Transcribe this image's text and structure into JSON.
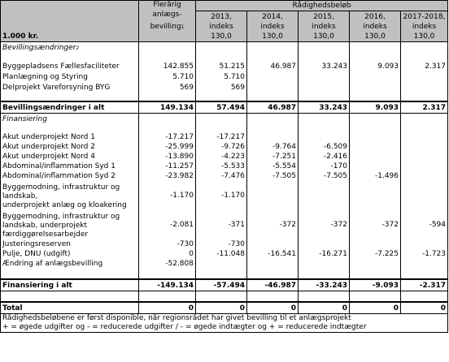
{
  "header": {
    "col1_line1": "Flerårig",
    "col1_line2": "anlægs-",
    "col1_line3": "bevilling",
    "col1_sup": "1",
    "group_label": "Rådighedsbeløb",
    "unit_label": "1.000 kr.",
    "years": [
      {
        "line1": "2013,",
        "line2": "indeks",
        "line3": "130,0"
      },
      {
        "line1": "2014,",
        "line2": "indeks",
        "line3": "130,0"
      },
      {
        "line1": "2015,",
        "line2": "indeks",
        "line3": "130,0"
      },
      {
        "line1": "2016,",
        "line2": "indeks",
        "line3": "130,0"
      },
      {
        "line1": "2017-2018,",
        "line2": "indeks",
        "line3": "130,0"
      }
    ]
  },
  "section1": {
    "label": "Bevillingsændringer",
    "sup": "2",
    "rows": [
      {
        "label": "Byggepladsens Fællesfaciliteter",
        "v": [
          "142.855",
          "51.215",
          "46.987",
          "33.243",
          "9.093",
          "2.317"
        ]
      },
      {
        "label": "Planlægning og Styring",
        "v": [
          "5.710",
          "5.710",
          "",
          "",
          "",
          ""
        ]
      },
      {
        "label": "Delprojekt Vareforsyning BYG",
        "v": [
          "569",
          "569",
          "",
          "",
          "",
          ""
        ]
      }
    ],
    "total": {
      "label": "Bevillingsændringer i alt",
      "v": [
        "149.134",
        "57.494",
        "46.987",
        "33.243",
        "9.093",
        "2.317"
      ]
    }
  },
  "section2": {
    "label": "Finansiering",
    "rows": [
      {
        "label": "Akut underprojekt Nord 1",
        "v": [
          "-17.217",
          "-17.217",
          "",
          "",
          "",
          ""
        ]
      },
      {
        "label": "Akut underprojekt Nord 2",
        "v": [
          "-25.999",
          "-9.726",
          "-9.764",
          "-6.509",
          "",
          ""
        ]
      },
      {
        "label": "Akut underprojekt Nord 4",
        "v": [
          "-13.890",
          "-4.223",
          "-7.251",
          "-2.416",
          "",
          ""
        ]
      },
      {
        "label": "Abdominal/inflammation Syd 1",
        "v": [
          "-11.257",
          "-5.533",
          "-5.554",
          "-170",
          "",
          ""
        ]
      },
      {
        "label": "Abdominal/inflammation Syd 2",
        "v": [
          "-23.982",
          "-7.476",
          "-7.505",
          "-7.505",
          "-1.496",
          ""
        ]
      },
      {
        "label1": "Byggemodning, infrastruktur og",
        "label2": "landskab,",
        "label3": "underprojekt anlæg og kloakering",
        "v": [
          "-1.170",
          "-1.170",
          "",
          "",
          "",
          ""
        ]
      },
      {
        "label1": "Byggemodning, infrastruktur og",
        "label2": "landskab, underprojekt",
        "label3": "færdiggørelsesarbejder",
        "v": [
          "-2.081",
          "-371",
          "-372",
          "-372",
          "-372",
          "-594"
        ]
      },
      {
        "label": "Justeringsreserven",
        "v": [
          "-730",
          "-730",
          "",
          "",
          "",
          ""
        ]
      },
      {
        "label": "Pulje, DNU (udgift)",
        "v": [
          "0",
          "-11.048",
          "-16.541",
          "-16.271",
          "-7.225",
          "-1.723"
        ]
      },
      {
        "label": "Ændring af anlægsbevilling",
        "v": [
          "-52.808",
          "",
          "",
          "",
          "",
          ""
        ]
      }
    ],
    "total": {
      "label": "Finansiering i alt",
      "v": [
        "-149.134",
        "-57.494",
        "-46.987",
        "-33.243",
        "-9.093",
        "-2.317"
      ]
    }
  },
  "grand_total": {
    "label": "Total",
    "v": [
      "0",
      "0",
      "0",
      "0",
      "0",
      "0"
    ]
  },
  "notes": {
    "line1": "Rådighedsbeløbene er først disponible, når regionsrådet har givet bevilling til et anlægsprojekt",
    "line2": "+ = øgede udgifter og - = reducerede udgifter / - = øgede indtægter og + = reducerede indtægter"
  }
}
